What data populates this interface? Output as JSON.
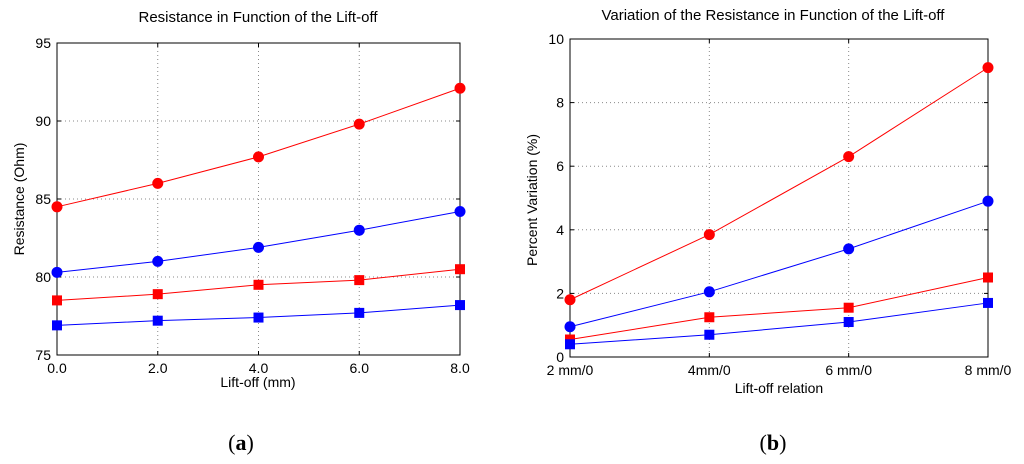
{
  "chart_data": [
    {
      "id": "a",
      "type": "line",
      "title": "Resistance in Function of the Lift-off",
      "xlabel": "Lift-off (mm)",
      "ylabel": "Resistance  (Ohm)",
      "x": [
        0,
        2,
        4,
        6,
        8
      ],
      "xticks": [
        "0.0",
        "2.0",
        "4.0",
        "6.0",
        "8.0"
      ],
      "xlim": [
        0,
        8
      ],
      "ylim": [
        75,
        95
      ],
      "yticks": [
        "75",
        "80",
        "85",
        "90",
        "95"
      ],
      "grid": true,
      "series": [
        {
          "color": "#ff0000",
          "marker": "circle",
          "values": [
            84.5,
            86.0,
            87.7,
            89.8,
            92.1
          ]
        },
        {
          "color": "#0000ff",
          "marker": "circle",
          "values": [
            80.3,
            81.0,
            81.9,
            83.0,
            84.2
          ]
        },
        {
          "color": "#ff0000",
          "marker": "square",
          "values": [
            78.5,
            78.9,
            79.5,
            79.8,
            80.5
          ]
        },
        {
          "color": "#0000ff",
          "marker": "square",
          "values": [
            76.9,
            77.2,
            77.4,
            77.7,
            78.2
          ]
        }
      ],
      "caption_open": "(",
      "caption_letter": "a",
      "caption_close": ")"
    },
    {
      "id": "b",
      "type": "line",
      "title": "Variation of the Resistance in Function of the Lift-off",
      "xlabel": "Lift-off relation",
      "ylabel": "Percent Variation (%)",
      "x": [
        0,
        1,
        2,
        3
      ],
      "xticks": [
        "2 mm/0",
        "4mm/0",
        "6 mm/0",
        "8 mm/0"
      ],
      "xlim": [
        0,
        3
      ],
      "ylim": [
        0,
        10
      ],
      "yticks": [
        "0",
        "2",
        "4",
        "6",
        "8",
        "10"
      ],
      "grid": true,
      "series": [
        {
          "color": "#ff0000",
          "marker": "circle",
          "values": [
            1.8,
            3.85,
            6.3,
            9.1
          ]
        },
        {
          "color": "#0000ff",
          "marker": "circle",
          "values": [
            0.95,
            2.05,
            3.4,
            4.9
          ]
        },
        {
          "color": "#ff0000",
          "marker": "square",
          "values": [
            0.55,
            1.25,
            1.55,
            2.5
          ]
        },
        {
          "color": "#0000ff",
          "marker": "square",
          "values": [
            0.4,
            0.7,
            1.1,
            1.7
          ]
        }
      ],
      "caption_open": "(",
      "caption_letter": "b",
      "caption_close": ")"
    }
  ]
}
